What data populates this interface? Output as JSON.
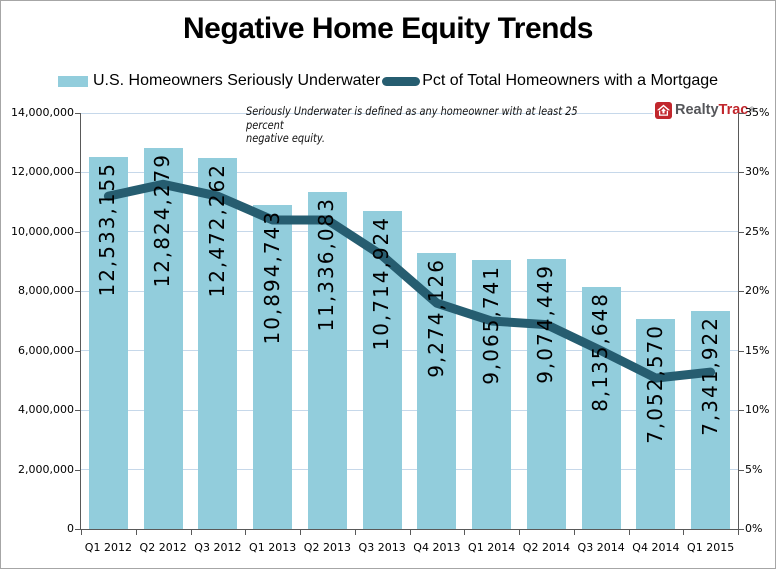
{
  "title": "Negative Home Equity Trends",
  "legend": {
    "items": [
      {
        "label": "U.S. Homeowners Seriously Underwater",
        "swatch": "bar-swatch"
      },
      {
        "label": "Pct of Total Homeowners with a Mortgage",
        "swatch": "line-swatch"
      }
    ]
  },
  "annotation": {
    "line1": "Seriously Underwater is defined as any homeowner with at least 25 percent",
    "line2": "negative equity."
  },
  "logo": {
    "realty": "Realty",
    "trac": "Trac",
    "mark": "®"
  },
  "colors": {
    "bar": "#92CDDC",
    "line": "#265D70",
    "gridline": "#C6D8EA",
    "axis": "#595959",
    "logo_red": "#C1272D",
    "logo_gray": "#55565A"
  },
  "chart_data": {
    "type": "bar+line",
    "title": "Negative Home Equity Trends",
    "categories": [
      "Q1 2012",
      "Q2 2012",
      "Q3 2012",
      "Q1 2013",
      "Q2 2013",
      "Q3 2013",
      "Q4 2013",
      "Q1 2014",
      "Q2 2014",
      "Q3 2014",
      "Q4 2014",
      "Q1 2015"
    ],
    "series": [
      {
        "name": "U.S. Homeowners Seriously Underwater",
        "type": "bar",
        "axis": "left",
        "values": [
          12533155,
          12824279,
          12472262,
          10894743,
          11336083,
          10714924,
          9274126,
          9065741,
          9074449,
          8135648,
          7052570,
          7341922
        ],
        "value_labels": [
          "12,533,155",
          "12,824,279",
          "12,472,262",
          "10,894,743",
          "11,336,083",
          "10,714,924",
          "9,274,126",
          "9,065,741",
          "9,074,449",
          "8,135,648",
          "7,052,570",
          "7,341,922"
        ]
      },
      {
        "name": "Pct of Total Homeowners with a Mortgage",
        "type": "line",
        "axis": "right",
        "values": [
          28,
          29,
          28,
          26,
          26,
          23,
          19,
          17.5,
          17.2,
          15,
          12.7,
          13.2
        ]
      }
    ],
    "left_axis": {
      "min": 0,
      "max": 14000000,
      "step": 2000000,
      "tick_labels": [
        "0",
        "2,000,000",
        "4,000,000",
        "6,000,000",
        "8,000,000",
        "10,000,000",
        "12,000,000",
        "14,000,000"
      ]
    },
    "right_axis": {
      "min": 0,
      "max": 35,
      "step": 5,
      "tick_labels": [
        "0%",
        "5%",
        "10%",
        "15%",
        "20%",
        "25%",
        "30%",
        "35%"
      ]
    },
    "grid": true,
    "legend_position": "top"
  }
}
